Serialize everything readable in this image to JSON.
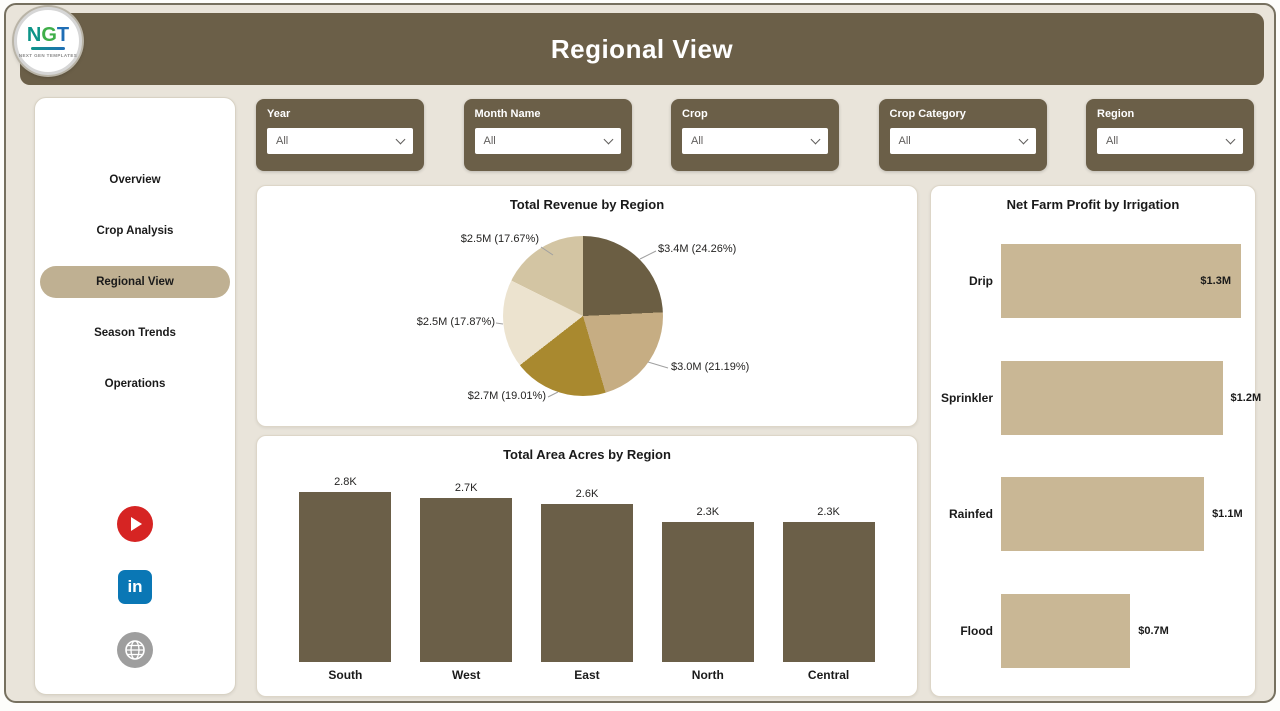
{
  "header": {
    "title": "Regional View"
  },
  "logo": {
    "letters": [
      "N",
      "G",
      "T"
    ],
    "caption": "NEXT GEN TEMPLATES"
  },
  "sidebar": {
    "items": [
      {
        "label": "Overview",
        "active": false
      },
      {
        "label": "Crop Analysis",
        "active": false
      },
      {
        "label": "Regional View",
        "active": true
      },
      {
        "label": "Season Trends",
        "active": false
      },
      {
        "label": "Operations",
        "active": false
      }
    ],
    "social": [
      "youtube",
      "linkedin",
      "website"
    ]
  },
  "filters": [
    {
      "label": "Year",
      "value": "All"
    },
    {
      "label": "Month Name",
      "value": "All"
    },
    {
      "label": "Crop",
      "value": "All"
    },
    {
      "label": "Crop Category",
      "value": "All"
    },
    {
      "label": "Region",
      "value": "All"
    }
  ],
  "chart_data": [
    {
      "type": "pie",
      "title": "Total Revenue by Region",
      "slices": [
        {
          "label": "$3.4M (24.26%)",
          "value": 24.26,
          "color": "#6b5e43"
        },
        {
          "label": "$3.0M (21.19%)",
          "value": 21.19,
          "color": "#c6ad83"
        },
        {
          "label": "$2.7M (19.01%)",
          "value": 19.01,
          "color": "#a9892f"
        },
        {
          "label": "$2.5M (17.87%)",
          "value": 17.87,
          "color": "#ece3cf"
        },
        {
          "label": "$2.5M (17.67%)",
          "value": 17.67,
          "color": "#d3c5a3"
        }
      ]
    },
    {
      "type": "bar",
      "title": "Total Area Acres by Region",
      "categories": [
        "South",
        "West",
        "East",
        "North",
        "Central"
      ],
      "values": [
        2.8,
        2.7,
        2.6,
        2.3,
        2.3
      ],
      "value_labels": [
        "2.8K",
        "2.7K",
        "2.6K",
        "2.3K",
        "2.3K"
      ],
      "bar_color": "#6b5f48",
      "ymax": 2.8
    },
    {
      "type": "bar-horizontal",
      "title": "Net Farm Profit by Irrigation",
      "categories": [
        "Drip",
        "Sprinkler",
        "Rainfed",
        "Flood"
      ],
      "values": [
        1.3,
        1.2,
        1.1,
        0.7
      ],
      "value_labels": [
        "$1.3M",
        "$1.2M",
        "$1.1M",
        "$0.7M"
      ],
      "bar_color": "#c9b795",
      "xmax": 1.3,
      "label_inside": [
        true,
        false,
        false,
        false
      ]
    }
  ]
}
